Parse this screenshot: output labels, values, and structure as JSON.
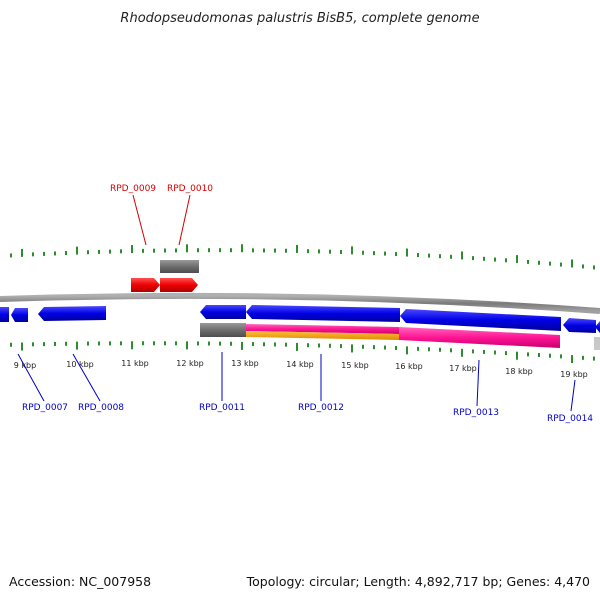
{
  "title": "Rhodopseudomonas palustris BisB5, complete genome",
  "footer": {
    "accession": "Accession: NC_007958",
    "summary": "Topology: circular; Length: 4,892,717 bp; Genes: 4,470"
  },
  "colors": {
    "backbone": "#8a8a8a",
    "tick": "#2e8b2e",
    "label_top": "#d40000",
    "label_bottom": "#0000c8",
    "cds_forward": "#ff0000",
    "cds_reverse": "#0000ee",
    "gene": "#707070",
    "rna": "#ff1493",
    "misc": "#ff9900"
  },
  "scale": {
    "kbp_labels": [
      "9 kbp",
      "10 kbp",
      "11 kbp",
      "12 kbp",
      "13 kbp",
      "14 kbp",
      "15 kbp",
      "16 kbp",
      "17 kbp",
      "18 kbp",
      "19 kbp"
    ]
  },
  "top_labels": [
    "RPD_0009",
    "RPD_0010"
  ],
  "bottom_labels": [
    "RPD_0007",
    "RPD_0008",
    "RPD_0011",
    "RPD_0012",
    "RPD_0013",
    "RPD_0014"
  ]
}
